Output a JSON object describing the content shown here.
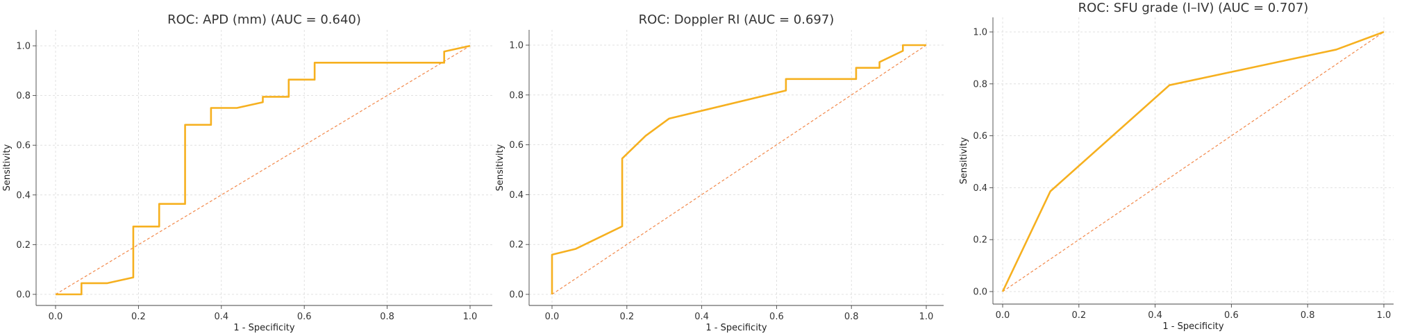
{
  "chart_data": [
    {
      "type": "line",
      "title": "ROC: APD (mm) (AUC = 0.640)",
      "xlabel": "1 - Specificity",
      "ylabel": "Sensitivity",
      "xlim": [
        0,
        1
      ],
      "ylim": [
        0,
        1
      ],
      "xticks": [
        "0.0",
        "0.2",
        "0.4",
        "0.6",
        "0.8",
        "1.0"
      ],
      "yticks": [
        "0.0",
        "0.2",
        "0.4",
        "0.6",
        "0.8",
        "1.0"
      ],
      "grid": true,
      "series": [
        {
          "color": "#f6b01f",
          "x": [
            0,
            0.0625,
            0.0625,
            0.125,
            0.1875,
            0.1875,
            0.25,
            0.25,
            0.3125,
            0.3125,
            0.375,
            0.375,
            0.4375,
            0.5,
            0.5,
            0.5625,
            0.5625,
            0.625,
            0.625,
            0.9375,
            0.9375,
            1.0
          ],
          "y": [
            0,
            0,
            0.045,
            0.045,
            0.068,
            0.273,
            0.273,
            0.364,
            0.364,
            0.682,
            0.682,
            0.75,
            0.75,
            0.773,
            0.795,
            0.795,
            0.864,
            0.864,
            0.932,
            0.932,
            0.977,
            1.0
          ]
        },
        {
          "color": "#f2884a",
          "style": "dashed",
          "x": [
            0,
            1
          ],
          "y": [
            0,
            1
          ]
        }
      ]
    },
    {
      "type": "line",
      "title": "ROC: Doppler RI (AUC = 0.697)",
      "xlabel": "1 - Specificity",
      "ylabel": "Sensitivity",
      "xlim": [
        0,
        1
      ],
      "ylim": [
        0,
        1
      ],
      "xticks": [
        "0.0",
        "0.2",
        "0.4",
        "0.6",
        "0.8",
        "1.0"
      ],
      "yticks": [
        "0.0",
        "0.2",
        "0.4",
        "0.6",
        "0.8",
        "1.0"
      ],
      "grid": true,
      "series": [
        {
          "color": "#f6b01f",
          "x": [
            0,
            0,
            0.0625,
            0.1875,
            0.1875,
            0.25,
            0.3125,
            0.625,
            0.625,
            0.8125,
            0.8125,
            0.875,
            0.875,
            0.9375,
            0.9375,
            1.0
          ],
          "y": [
            0,
            0.159,
            0.182,
            0.273,
            0.545,
            0.636,
            0.705,
            0.818,
            0.864,
            0.864,
            0.909,
            0.909,
            0.932,
            0.977,
            1.0,
            1.0
          ]
        },
        {
          "color": "#f2884a",
          "style": "dashed",
          "x": [
            0,
            1
          ],
          "y": [
            0,
            1
          ]
        }
      ]
    },
    {
      "type": "line",
      "title": "ROC: SFU grade (I–IV) (AUC = 0.707)",
      "xlabel": "1 - Specificity",
      "ylabel": "Sensitivity",
      "xlim": [
        0,
        1
      ],
      "ylim": [
        0,
        1
      ],
      "xticks": [
        "0.0",
        "0.2",
        "0.4",
        "0.6",
        "0.8",
        "1.0"
      ],
      "yticks": [
        "0.0",
        "0.2",
        "0.4",
        "0.6",
        "0.8",
        "1.0"
      ],
      "grid": true,
      "series": [
        {
          "color": "#f6b01f",
          "x": [
            0,
            0.125,
            0.4375,
            0.875,
            1.0
          ],
          "y": [
            0,
            0.386,
            0.795,
            0.932,
            1.0
          ]
        },
        {
          "color": "#f2884a",
          "style": "dashed",
          "x": [
            0,
            1
          ],
          "y": [
            0,
            1
          ]
        }
      ]
    }
  ]
}
